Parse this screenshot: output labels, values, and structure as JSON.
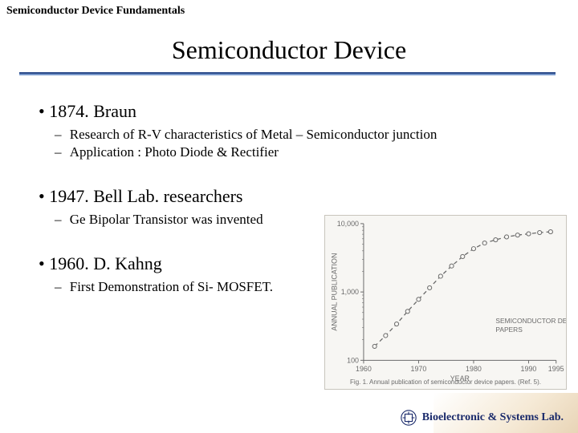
{
  "header": {
    "label": "Semiconductor Device Fundamentals"
  },
  "title": "Semiconductor Device",
  "bullets": {
    "b1": {
      "text": "1874. Braun",
      "s1": "Research of R-V characteristics of Metal – Semiconductor junction",
      "s2": "Application : Photo Diode & Rectifier"
    },
    "b2": {
      "text": "1947. Bell Lab. researchers",
      "s1": "Ge Bipolar Transistor was invented"
    },
    "b3": {
      "text": "1960. D. Kahng",
      "s1": "First Demonstration of Si- MOSFET."
    }
  },
  "chart": {
    "type": "line-log",
    "background_color": "#f7f6f3",
    "border_color": "#c8c5bd",
    "axis_color": "#6b6b6b",
    "tick_fontsize": 9,
    "label_fontsize": 9,
    "xlim": [
      1960,
      1995
    ],
    "xtick_step": 10,
    "xticks": [
      1960,
      1970,
      1980,
      1990,
      1995
    ],
    "ylim": [
      100,
      10000
    ],
    "yticks": [
      100,
      1000,
      10000
    ],
    "ytick_labels": [
      "100",
      "1,000",
      "10,000"
    ],
    "xlabel": "YEAR",
    "ylabel": "ANNUAL PUBLICATION",
    "inline_label": "SEMICONDUCTOR DEVICE\nPAPERS",
    "caption": "Fig. 1.  Annual publication of semiconductor device papers. (Ref. 5).",
    "dash_pattern": "5,4",
    "line_color": "#6b6b6b",
    "line_width": 1.3,
    "marker": "circle",
    "marker_size": 2.6,
    "marker_fill": "#f7f6f3",
    "marker_stroke": "#6b6b6b",
    "years": [
      1962,
      1964,
      1966,
      1968,
      1970,
      1972,
      1974,
      1976,
      1978,
      1980,
      1982,
      1984,
      1986,
      1988,
      1990,
      1992,
      1994
    ],
    "values": [
      160,
      230,
      340,
      520,
      780,
      1150,
      1700,
      2400,
      3300,
      4300,
      5200,
      5800,
      6400,
      6800,
      7100,
      7400,
      7600
    ]
  },
  "footer": {
    "lab": "Bioelectronic & Systems Lab.",
    "logo_color": "#1a2a6b"
  },
  "colors": {
    "underline_top": "#2a4a8a",
    "underline_bottom": "#7a9acc",
    "text": "#000000"
  }
}
